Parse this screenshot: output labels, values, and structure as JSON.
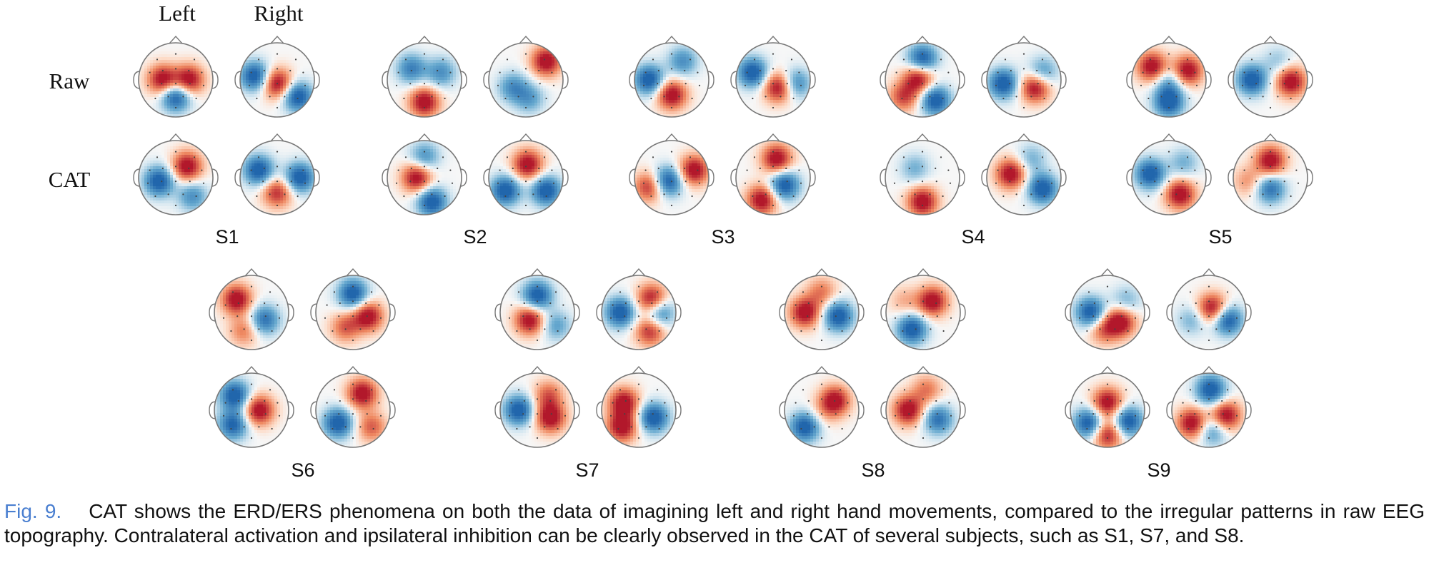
{
  "column_labels": [
    "Left",
    "Right"
  ],
  "row_labels": [
    "Raw",
    "CAT"
  ],
  "subjects": [
    {
      "label": "S1",
      "maps": [
        [
          [
            [
              -0.35,
              0,
              1
            ],
            [
              0.35,
              0,
              1
            ],
            [
              0,
              0.45,
              -1
            ]
          ],
          [
            [
              0,
              0.1,
              1
            ],
            [
              -0.6,
              -0.1,
              -1
            ],
            [
              0.55,
              0.45,
              -1
            ]
          ]
        ],
        [
          [
            [
              0.3,
              -0.3,
              1
            ],
            [
              -0.45,
              0.1,
              -1
            ],
            [
              0.45,
              0.5,
              -0.6
            ]
          ],
          [
            [
              -0.5,
              -0.2,
              -1
            ],
            [
              0,
              0.4,
              0.8
            ],
            [
              0.6,
              0,
              -1
            ]
          ]
        ]
      ]
    },
    {
      "label": "S2",
      "maps": [
        [
          [
            [
              0,
              0.6,
              1
            ],
            [
              -0.35,
              -0.3,
              -0.7
            ],
            [
              0.45,
              -0.2,
              -0.6
            ]
          ],
          [
            [
              0.55,
              -0.5,
              1
            ],
            [
              -0.35,
              0.2,
              -0.6
            ],
            [
              0.1,
              0.5,
              -0.5
            ]
          ]
        ],
        [
          [
            [
              -0.2,
              0,
              1
            ],
            [
              0.2,
              0.65,
              -1
            ],
            [
              0,
              -0.55,
              -0.6
            ]
          ],
          [
            [
              0.05,
              -0.35,
              1
            ],
            [
              -0.55,
              0.35,
              -1
            ],
            [
              0.55,
              0.35,
              -1
            ]
          ]
        ]
      ]
    },
    {
      "label": "S3",
      "maps": [
        [
          [
            [
              0,
              0.4,
              1
            ],
            [
              -0.6,
              0,
              -1
            ],
            [
              0.3,
              -0.5,
              -0.6
            ]
          ],
          [
            [
              0.15,
              0.2,
              1
            ],
            [
              -0.55,
              -0.2,
              -1
            ],
            [
              0.6,
              0.1,
              -0.7
            ]
          ]
        ],
        [
          [
            [
              -0.1,
              0.1,
              -1
            ],
            [
              0.6,
              -0.2,
              1
            ],
            [
              -0.6,
              0.25,
              0.8
            ]
          ],
          [
            [
              0.1,
              -0.5,
              1
            ],
            [
              0.3,
              0.2,
              -1
            ],
            [
              -0.3,
              0.6,
              1
            ]
          ]
        ]
      ]
    },
    {
      "label": "S4",
      "maps": [
        [
          [
            [
              -0.1,
              -0.05,
              1
            ],
            [
              0,
              -0.55,
              -1
            ],
            [
              0.35,
              0.55,
              -1
            ],
            [
              -0.5,
              0.45,
              0.7
            ]
          ],
          [
            [
              0.3,
              0.2,
              1
            ],
            [
              -0.55,
              0.1,
              -1
            ],
            [
              0.5,
              -0.2,
              -0.6
            ]
          ]
        ],
        [
          [
            [
              0,
              0.65,
              1
            ],
            [
              -0.2,
              -0.25,
              -0.4
            ]
          ],
          [
            [
              -0.35,
              -0.1,
              1
            ],
            [
              0.5,
              0.3,
              -1
            ],
            [
              0.2,
              -0.5,
              -0.4
            ]
          ]
        ]
      ]
    },
    {
      "label": "S5",
      "maps": [
        [
          [
            [
              -0.45,
              -0.35,
              1
            ],
            [
              0.5,
              -0.25,
              1
            ],
            [
              0,
              0.6,
              -1
            ],
            [
              0,
              0.05,
              -0.5
            ]
          ],
          [
            [
              -0.5,
              0,
              -1
            ],
            [
              0.55,
              0.05,
              1
            ],
            [
              0.2,
              -0.5,
              -0.3
            ]
          ]
        ],
        [
          [
            [
              -0.5,
              -0.1,
              -1
            ],
            [
              0.3,
              0.45,
              1
            ],
            [
              0.4,
              -0.4,
              -0.4
            ]
          ],
          [
            [
              0,
              -0.45,
              1
            ],
            [
              0,
              0.3,
              -0.8
            ],
            [
              -0.6,
              0.1,
              0.4
            ]
          ]
        ]
      ]
    },
    {
      "label": "S6",
      "maps": [
        [
          [
            [
              -0.4,
              -0.35,
              1
            ],
            [
              0.35,
              0.2,
              -0.8
            ],
            [
              -0.2,
              0.5,
              0.5
            ]
          ],
          [
            [
              0,
              -0.5,
              -1
            ],
            [
              0.4,
              0.1,
              1
            ],
            [
              -0.2,
              0.4,
              0.6
            ]
          ]
        ],
        [
          [
            [
              0.2,
              0,
              1
            ],
            [
              -0.45,
              -0.4,
              -1
            ],
            [
              -0.5,
              0.4,
              -0.9
            ]
          ],
          [
            [
              0.25,
              -0.45,
              1
            ],
            [
              -0.4,
              0.35,
              -1
            ],
            [
              0.5,
              0.45,
              0.6
            ]
          ]
        ]
      ]
    },
    {
      "label": "S7",
      "maps": [
        [
          [
            [
              0,
              -0.45,
              -1
            ],
            [
              -0.2,
              0.2,
              1
            ],
            [
              0.5,
              0.35,
              -0.5
            ]
          ],
          [
            [
              0.35,
              -0.35,
              1
            ],
            [
              -0.5,
              0,
              -1
            ],
            [
              0.3,
              0.5,
              0.8
            ],
            [
              0.55,
              0,
              -0.8
            ]
          ]
        ],
        [
          [
            [
              -0.5,
              0,
              -1
            ],
            [
              0.35,
              0.2,
              1
            ],
            [
              0.3,
              -0.4,
              0.6
            ]
          ],
          [
            [
              -0.4,
              -0.2,
              1
            ],
            [
              0.4,
              0.2,
              -1
            ],
            [
              -0.45,
              0.45,
              1
            ]
          ]
        ]
      ]
    },
    {
      "label": "S8",
      "maps": [
        [
          [
            [
              -0.45,
              0,
              1
            ],
            [
              0.45,
              0.1,
              -1
            ],
            [
              0,
              -0.55,
              0.5
            ]
          ],
          [
            [
              0.25,
              -0.3,
              1
            ],
            [
              -0.3,
              0.45,
              -1
            ],
            [
              -0.5,
              -0.3,
              0.3
            ]
          ]
        ],
        [
          [
            [
              0.35,
              -0.25,
              1
            ],
            [
              -0.45,
              0.45,
              -1
            ],
            [
              0,
              0.1,
              0.2
            ]
          ],
          [
            [
              -0.4,
              0,
              1
            ],
            [
              0.4,
              0.25,
              -0.8
            ],
            [
              0.1,
              -0.55,
              0.5
            ]
          ]
        ]
      ]
    },
    {
      "label": "S9",
      "maps": [
        [
          [
            [
              -0.45,
              0,
              -1
            ],
            [
              0.35,
              0.25,
              1
            ],
            [
              -0.1,
              0.45,
              0.6
            ],
            [
              0.5,
              -0.3,
              -0.4
            ]
          ],
          [
            [
              0.1,
              -0.1,
              1
            ],
            [
              0.5,
              0.2,
              -1
            ],
            [
              -0.45,
              0.2,
              -0.4
            ]
          ]
        ],
        [
          [
            [
              0,
              -0.2,
              1
            ],
            [
              -0.5,
              0.35,
              -1
            ],
            [
              0.55,
              0.3,
              -1
            ],
            [
              0,
              0.65,
              0.9
            ]
          ],
          [
            [
              0.05,
              -0.55,
              -1
            ],
            [
              0.45,
              0.15,
              1
            ],
            [
              -0.45,
              0.35,
              1
            ],
            [
              0.1,
              0.55,
              -0.6
            ]
          ]
        ]
      ]
    }
  ],
  "caption": {
    "label": "Fig. 9.",
    "text": "CAT shows the ERD/ERS phenomena on both the data of imagining left and right hand movements, compared to the irregular patterns in raw EEG topography. Contralateral activation and ipsilateral inhibition can be clearly observed in the CAT of several subjects, such as S1, S7, and S8."
  }
}
